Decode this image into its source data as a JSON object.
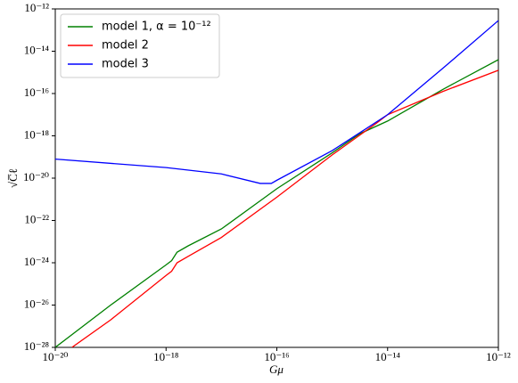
{
  "chart_data": {
    "type": "line",
    "xlabel": "Gμ",
    "ylabel": "√C̅ℓ",
    "log_x": true,
    "log_y": true,
    "legend": "upper left",
    "xlim": [
      1e-20,
      1e-12
    ],
    "ylim": [
      1e-28,
      1e-12
    ],
    "xticks": [
      {
        "value": 1e-20,
        "label": "10⁻²⁰"
      },
      {
        "value": 1e-18,
        "label": "10⁻¹⁸"
      },
      {
        "value": 1e-16,
        "label": "10⁻¹⁶"
      },
      {
        "value": 1e-14,
        "label": "10⁻¹⁴"
      },
      {
        "value": 1e-12,
        "label": "10⁻¹²"
      }
    ],
    "yticks": [
      {
        "value": 1e-28,
        "label": "10⁻²⁸"
      },
      {
        "value": 1e-26,
        "label": "10⁻²⁶"
      },
      {
        "value": 1e-24,
        "label": "10⁻²⁴"
      },
      {
        "value": 1e-22,
        "label": "10⁻²²"
      },
      {
        "value": 1e-20,
        "label": "10⁻²⁰"
      },
      {
        "value": 1e-18,
        "label": "10⁻¹⁸"
      },
      {
        "value": 1e-16,
        "label": "10⁻¹⁶"
      },
      {
        "value": 1e-14,
        "label": "10⁻¹⁴"
      },
      {
        "value": 1e-12,
        "label": "10⁻¹²"
      }
    ],
    "series": [
      {
        "name": "model 1, α = 10⁻¹²",
        "color": "#008000",
        "x": [
          1e-20,
          1e-19,
          1e-18,
          1.26e-18,
          1.58e-18,
          2.51e-18,
          1e-17,
          1e-16,
          1e-15,
          3.16e-15,
          1e-14,
          1e-13,
          1e-12
        ],
        "values": [
          1e-28,
          1e-26,
          7.94e-25,
          1.26e-24,
          3.16e-24,
          6.31e-24,
          3.98e-23,
          3.16e-21,
          1.58e-19,
          1.26e-18,
          5.01e-18,
          1.58e-16,
          3.98e-15
        ]
      },
      {
        "name": "model 2",
        "color": "#ff0000",
        "x": [
          2e-20,
          1e-19,
          1e-18,
          1.26e-18,
          1.58e-18,
          2.51e-18,
          1e-17,
          1e-16,
          1e-15,
          6.31e-15,
          1e-14,
          1e-13,
          1e-12
        ],
        "values": [
          1e-28,
          2e-27,
          2.51e-25,
          3.98e-25,
          1e-24,
          2e-24,
          1.58e-23,
          1.26e-21,
          1.26e-19,
          3.98e-18,
          1e-17,
          1.26e-16,
          1.26e-15
        ]
      },
      {
        "name": "model 3",
        "color": "#0000ff",
        "x": [
          1e-20,
          1e-18,
          1e-17,
          5.01e-17,
          7.94e-17,
          1e-16,
          1e-15,
          1e-14,
          1e-13,
          1e-12
        ],
        "values": [
          7.94e-20,
          3.16e-20,
          1.58e-20,
          5.62e-21,
          5.62e-21,
          7.94e-21,
          2e-19,
          1e-17,
          1.58e-15,
          2.82e-13
        ]
      }
    ]
  }
}
